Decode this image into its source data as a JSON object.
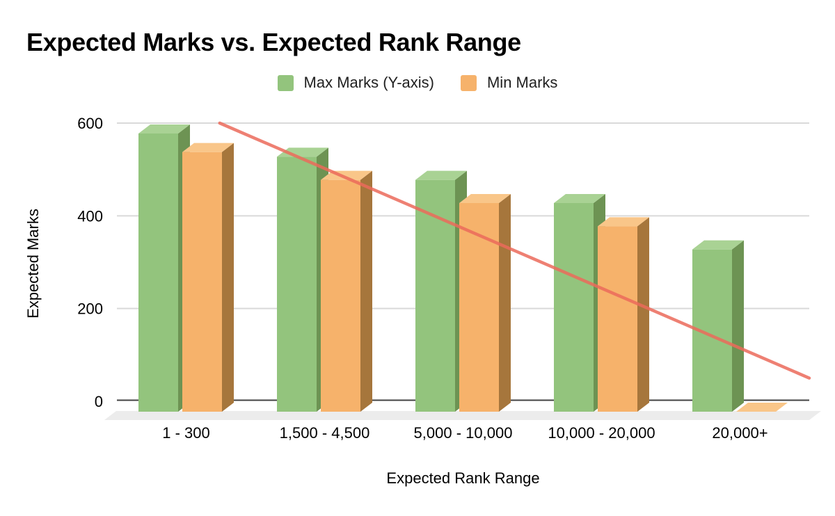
{
  "title": "Expected Marks vs. Expected Rank Range",
  "legend": {
    "items": [
      {
        "label": "Max Marks (Y-axis)",
        "color": "#93C47D"
      },
      {
        "label": "Min Marks",
        "color": "#F6B26B"
      }
    ]
  },
  "axes": {
    "y_label": "Expected Marks",
    "x_label": "Expected Rank Range",
    "y_ticks": [
      0,
      200,
      400,
      600
    ]
  },
  "chart_data": {
    "type": "bar",
    "style": "3d-column",
    "title": "Expected Marks vs. Expected Rank Range",
    "xlabel": "Expected Rank Range",
    "ylabel": "Expected Marks",
    "ylim": [
      0,
      600
    ],
    "grid": true,
    "legend_position": "top",
    "background": "#FFFFFF",
    "categories": [
      "1 - 300",
      "1,500 - 4,500",
      "5,000 - 10,000",
      "10,000 - 20,000",
      "20,000+"
    ],
    "series": [
      {
        "name": "Max Marks (Y-axis)",
        "color": "#93C47D",
        "color_top": "#A9D294",
        "color_side": "#6D9353",
        "values": [
          600,
          550,
          500,
          450,
          350
        ]
      },
      {
        "name": "Min Marks",
        "color": "#F6B26B",
        "color_top": "#F9C689",
        "color_side": "#A6763C",
        "values": [
          560,
          500,
          450,
          400,
          0
        ]
      }
    ],
    "trendline": {
      "color": "#EC6B5B",
      "start_value": 600,
      "end_value": 50
    },
    "colors": {
      "gridline": "#D9D9D9",
      "baseline": "#424242",
      "floor": "#ECECEC",
      "text": "#000000"
    }
  }
}
